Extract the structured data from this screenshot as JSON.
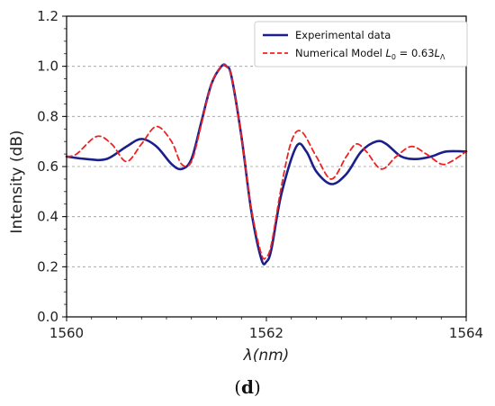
{
  "figure": {
    "panel_label_open": "(",
    "panel_label_letter": "d",
    "panel_label_close": ")"
  },
  "chart_data": {
    "type": "line",
    "xlabel": "λ(nm)",
    "ylabel": "Intensity (dB)",
    "xlim": [
      1560,
      1564
    ],
    "ylim": [
      0.0,
      1.2
    ],
    "x_ticks": [
      1560,
      1562,
      1564
    ],
    "x_tick_labels": [
      "1560",
      "1562",
      "1564"
    ],
    "y_ticks": [
      0.0,
      0.2,
      0.4,
      0.6,
      0.8,
      1.0,
      1.2
    ],
    "y_tick_labels": [
      "0.0",
      "0.2",
      "0.4",
      "0.6",
      "0.8",
      "1.0",
      "1.2"
    ],
    "grid": "horizontal dashed",
    "legend_placement": "top-right",
    "series": [
      {
        "name": "Experimental data",
        "color": "#1a1f8c",
        "style": "solid",
        "x": [
          1560.0,
          1560.2,
          1560.4,
          1560.6,
          1560.75,
          1560.9,
          1561.05,
          1561.15,
          1561.25,
          1561.35,
          1561.45,
          1561.55,
          1561.6,
          1561.65,
          1561.75,
          1561.85,
          1561.95,
          1562.0,
          1562.05,
          1562.15,
          1562.3,
          1562.4,
          1562.5,
          1562.65,
          1562.8,
          1562.95,
          1563.1,
          1563.2,
          1563.35,
          1563.5,
          1563.65,
          1563.8,
          1564.0
        ],
        "y": [
          0.64,
          0.63,
          0.63,
          0.68,
          0.71,
          0.68,
          0.61,
          0.59,
          0.63,
          0.78,
          0.93,
          1.0,
          1.0,
          0.96,
          0.72,
          0.42,
          0.23,
          0.22,
          0.27,
          0.49,
          0.68,
          0.66,
          0.58,
          0.53,
          0.57,
          0.66,
          0.7,
          0.69,
          0.64,
          0.63,
          0.64,
          0.66,
          0.66
        ]
      },
      {
        "name": "Numerical Model L₀ = 0.63L_Λ",
        "color": "#ee2222",
        "style": "dashed",
        "x": [
          1560.0,
          1560.1,
          1560.3,
          1560.45,
          1560.6,
          1560.75,
          1560.9,
          1561.05,
          1561.15,
          1561.25,
          1561.35,
          1561.45,
          1561.55,
          1561.6,
          1561.65,
          1561.75,
          1561.85,
          1561.95,
          1562.0,
          1562.05,
          1562.15,
          1562.25,
          1562.35,
          1562.5,
          1562.65,
          1562.8,
          1562.9,
          1563.0,
          1563.15,
          1563.3,
          1563.45,
          1563.6,
          1563.75,
          1563.85,
          1564.0
        ],
        "y": [
          0.64,
          0.65,
          0.72,
          0.69,
          0.62,
          0.69,
          0.76,
          0.7,
          0.61,
          0.62,
          0.77,
          0.93,
          1.0,
          1.0,
          0.96,
          0.72,
          0.43,
          0.25,
          0.24,
          0.29,
          0.52,
          0.7,
          0.74,
          0.64,
          0.55,
          0.64,
          0.69,
          0.66,
          0.59,
          0.64,
          0.68,
          0.65,
          0.61,
          0.62,
          0.66
        ]
      }
    ]
  }
}
